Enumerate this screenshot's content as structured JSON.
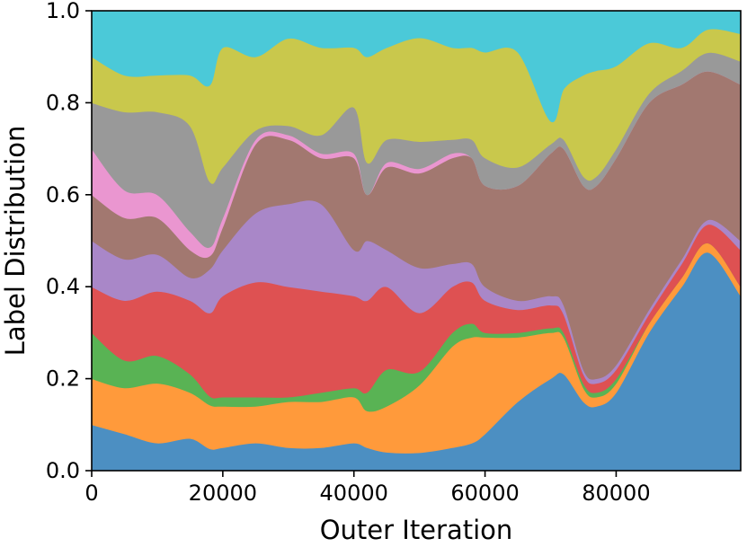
{
  "chart_data": {
    "type": "area",
    "stacked": true,
    "xlabel": "Outer Iteration",
    "ylabel": "Label Distribution",
    "xlim": [
      0,
      99000
    ],
    "ylim": [
      0,
      1.0
    ],
    "xticks": [
      0,
      20000,
      40000,
      60000,
      80000
    ],
    "xtick_labels": [
      "0",
      "20000",
      "40000",
      "60000",
      "80000"
    ],
    "yticks": [
      0.0,
      0.2,
      0.4,
      0.6,
      0.8,
      1.0
    ],
    "ytick_labels": [
      "0.0",
      "0.2",
      "0.4",
      "0.6",
      "0.8",
      "1.0"
    ],
    "grid": false,
    "legend": false,
    "x": [
      0,
      5000,
      10000,
      15000,
      18000,
      20000,
      25000,
      30000,
      35000,
      40000,
      42000,
      45000,
      50000,
      55000,
      58000,
      60000,
      65000,
      70000,
      72000,
      75000,
      77000,
      80000,
      85000,
      90000,
      94000,
      99000
    ],
    "series": [
      {
        "color": "#4c8fc2",
        "values": [
          0.1,
          0.08,
          0.06,
          0.07,
          0.05,
          0.05,
          0.06,
          0.05,
          0.05,
          0.06,
          0.05,
          0.04,
          0.04,
          0.05,
          0.06,
          0.08,
          0.15,
          0.2,
          0.21,
          0.15,
          0.14,
          0.17,
          0.3,
          0.4,
          0.47,
          0.38
        ]
      },
      {
        "color": "#ff9a3b",
        "values": [
          0.1,
          0.1,
          0.13,
          0.1,
          0.1,
          0.09,
          0.08,
          0.1,
          0.1,
          0.1,
          0.08,
          0.1,
          0.15,
          0.22,
          0.23,
          0.21,
          0.14,
          0.1,
          0.08,
          0.03,
          0.02,
          0.02,
          0.02,
          0.02,
          0.02,
          0.02
        ]
      },
      {
        "color": "#59b354",
        "values": [
          0.1,
          0.06,
          0.06,
          0.04,
          0.02,
          0.02,
          0.02,
          0.01,
          0.02,
          0.02,
          0.04,
          0.08,
          0.03,
          0.03,
          0.03,
          0.01,
          0.01,
          0.01,
          0.01,
          0.01,
          0.01,
          0.01,
          0.0,
          0.0,
          0.0,
          0.0
        ]
      },
      {
        "color": "#de5152",
        "values": [
          0.1,
          0.13,
          0.14,
          0.16,
          0.19,
          0.22,
          0.25,
          0.24,
          0.22,
          0.2,
          0.2,
          0.18,
          0.13,
          0.1,
          0.09,
          0.07,
          0.05,
          0.05,
          0.04,
          0.02,
          0.02,
          0.02,
          0.02,
          0.03,
          0.04,
          0.08
        ]
      },
      {
        "color": "#a987c8",
        "values": [
          0.1,
          0.09,
          0.08,
          0.05,
          0.1,
          0.1,
          0.15,
          0.18,
          0.19,
          0.1,
          0.13,
          0.08,
          0.1,
          0.05,
          0.04,
          0.03,
          0.02,
          0.02,
          0.02,
          0.01,
          0.01,
          0.01,
          0.01,
          0.01,
          0.01,
          0.02
        ]
      },
      {
        "color": "#a27870",
        "values": [
          0.1,
          0.09,
          0.08,
          0.06,
          0.03,
          0.05,
          0.15,
          0.14,
          0.1,
          0.2,
          0.1,
          0.18,
          0.21,
          0.23,
          0.23,
          0.22,
          0.25,
          0.31,
          0.34,
          0.4,
          0.42,
          0.45,
          0.45,
          0.38,
          0.32,
          0.34
        ]
      },
      {
        "color": "#ea96d0",
        "values": [
          0.1,
          0.06,
          0.05,
          0.04,
          0.02,
          0.02,
          0.01,
          0.01,
          0.01,
          0.01,
          0.0,
          0.01,
          0.01,
          0.01,
          0.0,
          0.0,
          0.0,
          0.0,
          0.0,
          0.0,
          0.0,
          0.0,
          0.0,
          0.0,
          0.0,
          0.0
        ]
      },
      {
        "color": "#999999",
        "values": [
          0.1,
          0.17,
          0.18,
          0.23,
          0.15,
          0.11,
          0.02,
          0.02,
          0.04,
          0.1,
          0.07,
          0.05,
          0.06,
          0.03,
          0.04,
          0.06,
          0.04,
          0.02,
          0.02,
          0.02,
          0.02,
          0.02,
          0.02,
          0.03,
          0.04,
          0.05
        ]
      },
      {
        "color": "#c9c84c",
        "values": [
          0.1,
          0.08,
          0.08,
          0.11,
          0.22,
          0.26,
          0.16,
          0.19,
          0.19,
          0.13,
          0.23,
          0.2,
          0.23,
          0.2,
          0.2,
          0.23,
          0.25,
          0.05,
          0.11,
          0.22,
          0.23,
          0.18,
          0.11,
          0.05,
          0.05,
          0.06
        ]
      },
      {
        "color": "#4bc9d8",
        "values": [
          0.1,
          0.14,
          0.14,
          0.14,
          0.17,
          0.08,
          0.1,
          0.06,
          0.08,
          0.08,
          0.1,
          0.08,
          0.06,
          0.08,
          0.08,
          0.09,
          0.09,
          0.24,
          0.17,
          0.14,
          0.13,
          0.12,
          0.07,
          0.08,
          0.04,
          0.05
        ]
      }
    ]
  }
}
